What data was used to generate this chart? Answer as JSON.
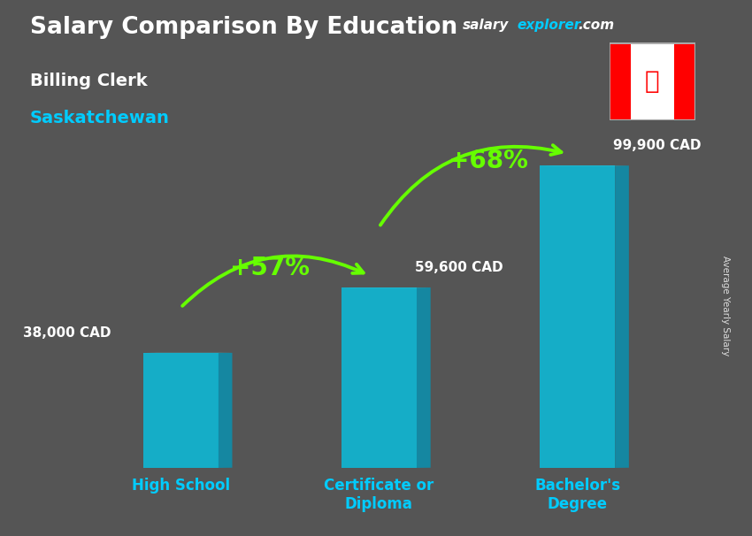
{
  "title": "Salary Comparison By Education",
  "subtitle_job": "Billing Clerk",
  "subtitle_location": "Saskatchewan",
  "categories": [
    "High School",
    "Certificate or\nDiploma",
    "Bachelor's\nDegree"
  ],
  "values": [
    38000,
    59600,
    99900
  ],
  "value_labels": [
    "38,000 CAD",
    "59,600 CAD",
    "99,900 CAD"
  ],
  "bar_front_color": "#00ccee",
  "bar_side_color": "#0099bb",
  "bar_top_color": "#55eeff",
  "bar_alpha": 0.75,
  "pct_labels": [
    "+57%",
    "+68%"
  ],
  "pct_color": "#66ff00",
  "arrow_color": "#66ff00",
  "title_color": "#ffffff",
  "subtitle_job_color": "#ffffff",
  "subtitle_location_color": "#00ccff",
  "value_label_color": "#ffffff",
  "xlabel_color": "#00ccff",
  "ylabel_text": "Average Yearly Salary",
  "bg_color": "#4a4a4a",
  "site_salary_color": "#ffffff",
  "site_explorer_color": "#00ccff",
  "site_dot_com_color": "#ffffff"
}
